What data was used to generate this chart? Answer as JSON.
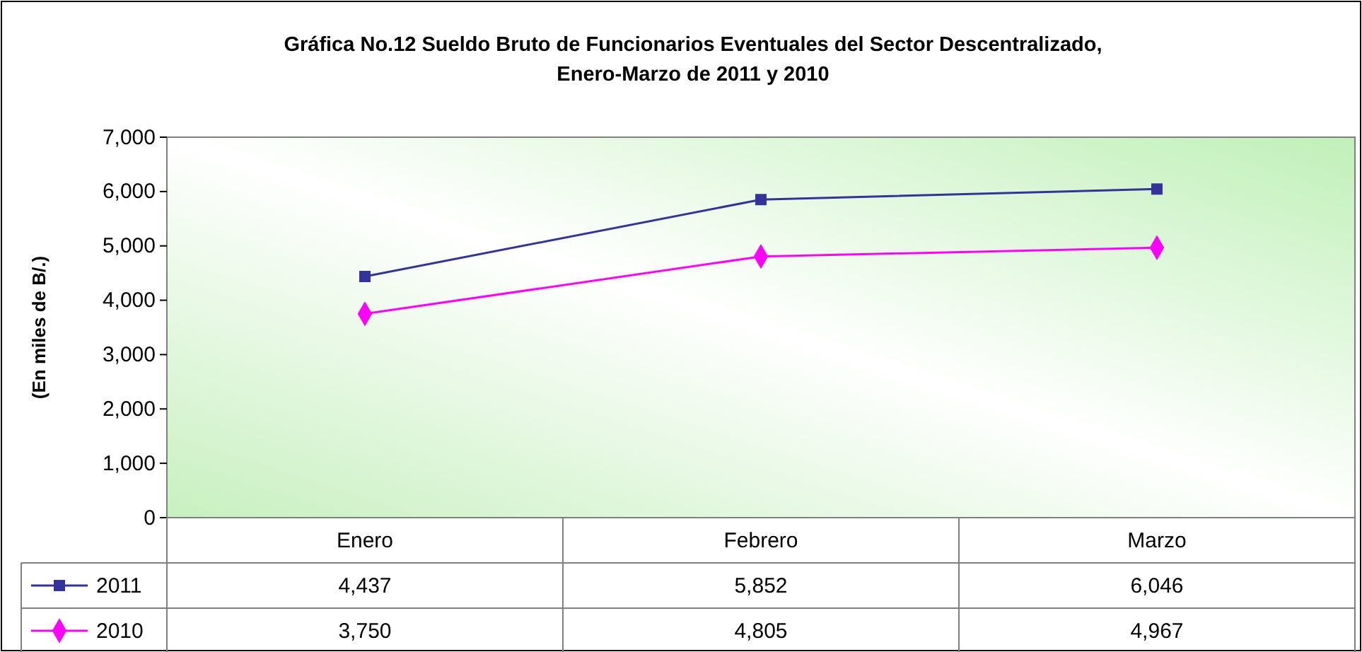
{
  "chart_data": {
    "type": "line",
    "title": "Gráfica No.12 Sueldo Bruto de Funcionarios Eventuales del Sector Descentralizado,\nEnero-Marzo de 2011 y 2010",
    "ylabel": "(En miles de B/.)",
    "categories": [
      "Enero",
      "Febrero",
      "Marzo"
    ],
    "series": [
      {
        "name": "2011",
        "color": "#333399",
        "marker": "square",
        "values": [
          4437,
          5852,
          6046
        ],
        "value_labels": [
          "4,437",
          "5,852",
          "6,046"
        ]
      },
      {
        "name": "2010",
        "color": "#ff00ff",
        "marker": "diamond",
        "values": [
          3750,
          4805,
          4967
        ],
        "value_labels": [
          "3,750",
          "4,805",
          "4,967"
        ]
      }
    ],
    "ylim": [
      0,
      7000
    ],
    "yticks": [
      0,
      {
        "value": 1000,
        "label": "1,000"
      },
      {
        "value": 2000,
        "label": "2,000"
      },
      {
        "value": 3000,
        "label": "3,000"
      },
      {
        "value": 4000,
        "label": "4,000"
      },
      {
        "value": 5000,
        "label": "5,000"
      },
      {
        "value": 6000,
        "label": "6,000"
      },
      {
        "value": 7000,
        "label": "7,000"
      }
    ],
    "grid": false,
    "legend": "bottom left",
    "line_style": "solid"
  }
}
